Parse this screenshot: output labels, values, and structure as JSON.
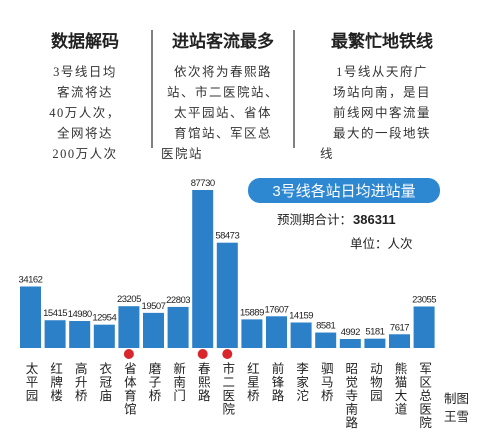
{
  "columns": [
    {
      "title": "数据解码",
      "lines": [
        "3号线日均",
        "客流将达",
        "40万人次，",
        "全网将达",
        "200万人次"
      ]
    },
    {
      "title": "进站客流最多",
      "lines": [
        "依次将为春熙路",
        "站、市二医院站、",
        "太平园站、省体",
        "育馆站、军区总",
        "医院站"
      ]
    },
    {
      "title": "最繁忙地铁线",
      "lines": [
        "1号线从天府广",
        "场站向南，是目",
        "前线网中客流量",
        "最大的一段地铁",
        "线"
      ]
    }
  ],
  "chart_data": {
    "type": "bar",
    "title": "3号线各站日均进站量",
    "total_label": "预测期合计：",
    "total": 386311,
    "unit": "单位：人次",
    "categories": [
      "太平园",
      "红牌楼",
      "高升桥",
      "衣冠庙",
      "省体育馆",
      "磨子桥",
      "新南门",
      "春熙路",
      "市二医院",
      "红星桥",
      "前锋路",
      "李家沱",
      "驷马桥",
      "昭觉寺南路",
      "动物园",
      "熊猫大道",
      "军区总医院"
    ],
    "values": [
      34162,
      15415,
      14980,
      12954,
      23205,
      19507,
      22803,
      87730,
      58473,
      15889,
      17607,
      14159,
      8581,
      4992,
      5181,
      7617,
      23055
    ],
    "color": "#2b80c8",
    "highlighted": [
      4,
      7,
      8
    ],
    "highlight_color": "#d9262c"
  },
  "credit": [
    "制图",
    "王雪"
  ]
}
